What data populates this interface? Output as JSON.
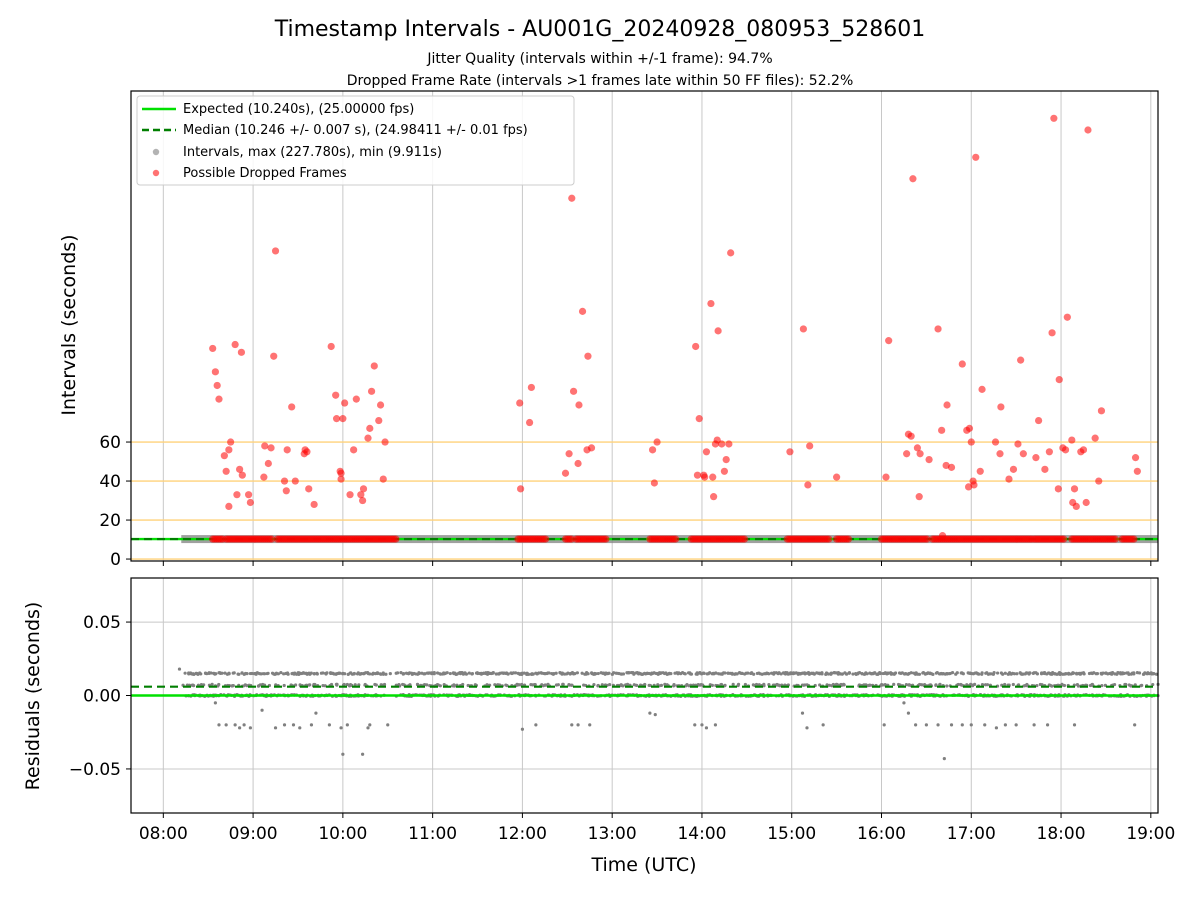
{
  "chart_data": {
    "type": "scatter",
    "title": "Timestamp Intervals - AU001G_20240928_080953_528601",
    "subtitle_lines": [
      "Jitter Quality (intervals within +/-1 frame): 94.7%",
      "Dropped Frame Rate (intervals >1 frames late within 50 FF files): 52.2%"
    ],
    "xlabel": "Time (UTC)",
    "x_ticks": [
      "08:00",
      "09:00",
      "10:00",
      "11:00",
      "12:00",
      "13:00",
      "14:00",
      "15:00",
      "16:00",
      "17:00",
      "18:00",
      "19:00"
    ],
    "xlim_hours": [
      7.64,
      19.08
    ],
    "colors": {
      "expected": "#00e000",
      "median": "#007f00",
      "intervals": "#808080",
      "dropped": "#ff0000",
      "threshold": "#ffd27a",
      "grid": "#c8c8c8"
    },
    "top_panel": {
      "ylabel": "Intervals (seconds)",
      "y_ticks": [
        0,
        20,
        40,
        60
      ],
      "ylim": [
        -1,
        240
      ],
      "threshold_lines": [
        0,
        20,
        40,
        60
      ],
      "expected_interval": 10.24,
      "median_interval": 10.246,
      "interval_trace_range_hours": [
        8.2,
        19.08
      ],
      "legend": [
        "Expected (10.240s), (25.00000 fps)",
        "Median (10.246 +/- 0.007 s), (24.98411 +/- 0.01 fps)",
        "Intervals, max (227.780s), min (9.911s)",
        "Possible Dropped Frames"
      ],
      "legend_position": "upper-left",
      "dropped_frames": [
        [
          8.55,
          108
        ],
        [
          8.58,
          96
        ],
        [
          8.6,
          89
        ],
        [
          8.62,
          82
        ],
        [
          8.68,
          53
        ],
        [
          8.7,
          45
        ],
        [
          8.73,
          56
        ],
        [
          8.75,
          60
        ],
        [
          8.73,
          27
        ],
        [
          8.8,
          110
        ],
        [
          8.82,
          33
        ],
        [
          8.85,
          46
        ],
        [
          8.87,
          106
        ],
        [
          8.88,
          43
        ],
        [
          8.95,
          33
        ],
        [
          8.97,
          29
        ],
        [
          9.12,
          42
        ],
        [
          9.13,
          58
        ],
        [
          9.17,
          49
        ],
        [
          9.2,
          57
        ],
        [
          9.23,
          104
        ],
        [
          9.25,
          158
        ],
        [
          9.35,
          40
        ],
        [
          9.37,
          35
        ],
        [
          9.38,
          56
        ],
        [
          9.43,
          78
        ],
        [
          9.47,
          40
        ],
        [
          9.57,
          54
        ],
        [
          9.58,
          56
        ],
        [
          9.6,
          55
        ],
        [
          9.62,
          36
        ],
        [
          9.68,
          28
        ],
        [
          9.87,
          109
        ],
        [
          9.92,
          84
        ],
        [
          9.93,
          72
        ],
        [
          9.97,
          45
        ],
        [
          9.98,
          44
        ],
        [
          9.98,
          41
        ],
        [
          10.0,
          72
        ],
        [
          10.02,
          80
        ],
        [
          10.08,
          33
        ],
        [
          10.12,
          56
        ],
        [
          10.15,
          82
        ],
        [
          10.2,
          33
        ],
        [
          10.22,
          30
        ],
        [
          10.23,
          36
        ],
        [
          10.28,
          62
        ],
        [
          10.3,
          67
        ],
        [
          10.32,
          86
        ],
        [
          10.35,
          99
        ],
        [
          10.4,
          71
        ],
        [
          10.42,
          79
        ],
        [
          10.45,
          41
        ],
        [
          10.47,
          60
        ],
        [
          11.97,
          80
        ],
        [
          11.98,
          36
        ],
        [
          12.08,
          70
        ],
        [
          12.1,
          88
        ],
        [
          12.48,
          44
        ],
        [
          12.52,
          54
        ],
        [
          12.55,
          185
        ],
        [
          12.57,
          86
        ],
        [
          12.62,
          49
        ],
        [
          12.63,
          79
        ],
        [
          12.67,
          127
        ],
        [
          12.72,
          56
        ],
        [
          12.73,
          104
        ],
        [
          12.77,
          57
        ],
        [
          13.45,
          56
        ],
        [
          13.47,
          39
        ],
        [
          13.5,
          60
        ],
        [
          13.93,
          109
        ],
        [
          13.95,
          43
        ],
        [
          13.97,
          72
        ],
        [
          14.02,
          43
        ],
        [
          14.03,
          42
        ],
        [
          14.05,
          55
        ],
        [
          14.1,
          131
        ],
        [
          14.12,
          42
        ],
        [
          14.13,
          32
        ],
        [
          14.15,
          59
        ],
        [
          14.17,
          61
        ],
        [
          14.18,
          117
        ],
        [
          14.22,
          59
        ],
        [
          14.25,
          45
        ],
        [
          14.27,
          51
        ],
        [
          14.3,
          59
        ],
        [
          14.32,
          157
        ],
        [
          14.98,
          55
        ],
        [
          15.13,
          118
        ],
        [
          15.18,
          38
        ],
        [
          15.2,
          58
        ],
        [
          15.5,
          42
        ],
        [
          16.05,
          42
        ],
        [
          16.08,
          112
        ],
        [
          16.28,
          54
        ],
        [
          16.3,
          64
        ],
        [
          16.33,
          63
        ],
        [
          16.35,
          195
        ],
        [
          16.4,
          57
        ],
        [
          16.42,
          32
        ],
        [
          16.43,
          54
        ],
        [
          16.53,
          51
        ],
        [
          16.63,
          118
        ],
        [
          16.67,
          66
        ],
        [
          16.68,
          12
        ],
        [
          16.72,
          48
        ],
        [
          16.73,
          79
        ],
        [
          16.78,
          47
        ],
        [
          16.9,
          100
        ],
        [
          16.95,
          66
        ],
        [
          16.97,
          37
        ],
        [
          16.98,
          67
        ],
        [
          17.0,
          60
        ],
        [
          17.02,
          40
        ],
        [
          17.03,
          38
        ],
        [
          17.05,
          206
        ],
        [
          17.1,
          45
        ],
        [
          17.12,
          87
        ],
        [
          17.27,
          60
        ],
        [
          17.32,
          54
        ],
        [
          17.33,
          78
        ],
        [
          17.42,
          41
        ],
        [
          17.47,
          46
        ],
        [
          17.52,
          59
        ],
        [
          17.55,
          102
        ],
        [
          17.58,
          54
        ],
        [
          17.72,
          52
        ],
        [
          17.75,
          71
        ],
        [
          17.82,
          46
        ],
        [
          17.87,
          55
        ],
        [
          17.9,
          116
        ],
        [
          17.92,
          226
        ],
        [
          17.97,
          36
        ],
        [
          17.98,
          92
        ],
        [
          18.02,
          57
        ],
        [
          18.05,
          56
        ],
        [
          18.07,
          124
        ],
        [
          18.12,
          61
        ],
        [
          18.13,
          29
        ],
        [
          18.15,
          36
        ],
        [
          18.17,
          27
        ],
        [
          18.22,
          55
        ],
        [
          18.25,
          56
        ],
        [
          18.28,
          29
        ],
        [
          18.3,
          220
        ],
        [
          18.38,
          62
        ],
        [
          18.42,
          40
        ],
        [
          18.45,
          76
        ],
        [
          18.83,
          52
        ],
        [
          18.85,
          45
        ]
      ],
      "dropped_near_expected_runs": [
        [
          8.55,
          8.68
        ],
        [
          8.7,
          9.22
        ],
        [
          9.27,
          10.48
        ],
        [
          10.48,
          10.6
        ],
        [
          11.95,
          12.28
        ],
        [
          12.48,
          12.55
        ],
        [
          12.6,
          12.95
        ],
        [
          13.42,
          13.72
        ],
        [
          13.88,
          14.48
        ],
        [
          14.95,
          15.42
        ],
        [
          15.5,
          15.65
        ],
        [
          16.0,
          16.52
        ],
        [
          16.57,
          17.08
        ],
        [
          17.1,
          17.68
        ],
        [
          17.7,
          18.05
        ],
        [
          18.12,
          18.62
        ],
        [
          18.68,
          18.82
        ]
      ]
    },
    "bottom_panel": {
      "ylabel": "Residuals (seconds)",
      "y_ticks": [
        "0.05",
        "0.00",
        "−0.05"
      ],
      "y_tick_values": [
        0.05,
        0.0,
        -0.05
      ],
      "ylim": [
        -0.08,
        0.08
      ],
      "expected_residual": 0.0,
      "median_residual": 0.006,
      "residual_levels": [
        0.0,
        0.007,
        0.015
      ],
      "residual_band_range_hours": [
        8.25,
        19.08
      ],
      "residual_outliers": [
        [
          8.18,
          0.018
        ],
        [
          8.22,
          0.007
        ],
        [
          8.43,
          0.007
        ],
        [
          8.58,
          -0.005
        ],
        [
          8.62,
          -0.02
        ],
        [
          8.7,
          -0.02
        ],
        [
          8.8,
          -0.02
        ],
        [
          8.85,
          -0.022
        ],
        [
          8.9,
          -0.02
        ],
        [
          8.97,
          -0.022
        ],
        [
          9.1,
          -0.01
        ],
        [
          9.25,
          -0.022
        ],
        [
          9.35,
          -0.02
        ],
        [
          9.45,
          -0.02
        ],
        [
          9.52,
          -0.022
        ],
        [
          9.65,
          -0.02
        ],
        [
          9.7,
          -0.012
        ],
        [
          9.85,
          -0.02
        ],
        [
          9.98,
          -0.022
        ],
        [
          10.0,
          -0.04
        ],
        [
          10.05,
          -0.02
        ],
        [
          10.22,
          -0.04
        ],
        [
          10.28,
          -0.022
        ],
        [
          10.3,
          -0.02
        ],
        [
          10.5,
          -0.02
        ],
        [
          12.0,
          -0.023
        ],
        [
          12.15,
          -0.02
        ],
        [
          12.55,
          -0.02
        ],
        [
          12.62,
          -0.02
        ],
        [
          12.75,
          -0.02
        ],
        [
          13.42,
          -0.012
        ],
        [
          13.48,
          -0.013
        ],
        [
          13.92,
          -0.02
        ],
        [
          14.0,
          -0.02
        ],
        [
          14.05,
          -0.022
        ],
        [
          14.15,
          -0.02
        ],
        [
          15.12,
          -0.012
        ],
        [
          15.17,
          -0.022
        ],
        [
          15.35,
          -0.02
        ],
        [
          16.03,
          -0.02
        ],
        [
          16.25,
          -0.005
        ],
        [
          16.3,
          -0.012
        ],
        [
          16.38,
          -0.02
        ],
        [
          16.5,
          -0.02
        ],
        [
          16.63,
          -0.02
        ],
        [
          16.7,
          -0.043
        ],
        [
          16.78,
          -0.02
        ],
        [
          16.9,
          -0.02
        ],
        [
          17.0,
          -0.02
        ],
        [
          17.15,
          -0.02
        ],
        [
          17.28,
          -0.022
        ],
        [
          17.38,
          -0.02
        ],
        [
          17.5,
          -0.02
        ],
        [
          17.7,
          -0.02
        ],
        [
          17.85,
          -0.02
        ],
        [
          18.15,
          -0.02
        ],
        [
          18.82,
          -0.02
        ]
      ]
    }
  }
}
